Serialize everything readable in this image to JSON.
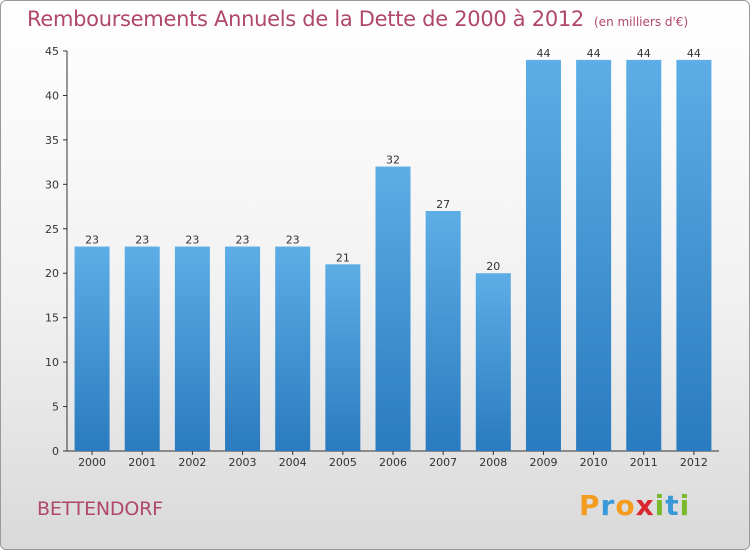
{
  "chart_data": {
    "type": "bar",
    "title": "Remboursements Annuels de la Dette de 2000 à 2012",
    "subtitle": "(en milliers d'€)",
    "categories": [
      "2000",
      "2001",
      "2002",
      "2003",
      "2004",
      "2005",
      "2006",
      "2007",
      "2008",
      "2009",
      "2010",
      "2011",
      "2012"
    ],
    "values": [
      23,
      23,
      23,
      23,
      23,
      21,
      32,
      27,
      20,
      44,
      44,
      44,
      44
    ],
    "ylim": [
      0,
      45
    ],
    "yticks": [
      0,
      5,
      10,
      15,
      20,
      25,
      30,
      35,
      40,
      45
    ],
    "xlabel": "",
    "ylabel": "",
    "grid": false,
    "bar_color_top": "#5dade6",
    "bar_color_bottom": "#2a7bbf"
  },
  "place_name": "BETTENDORF",
  "brand": {
    "letters": [
      "P",
      "r",
      "o",
      "x",
      "i",
      "t",
      "i"
    ],
    "colors": [
      "#f39c1f",
      "#3a9ad9",
      "#f39c1f",
      "#d9262f",
      "#7ab929",
      "#3a9ad9",
      "#7ab929"
    ]
  },
  "colors": {
    "title": "#b0476d",
    "axis": "#333333"
  }
}
